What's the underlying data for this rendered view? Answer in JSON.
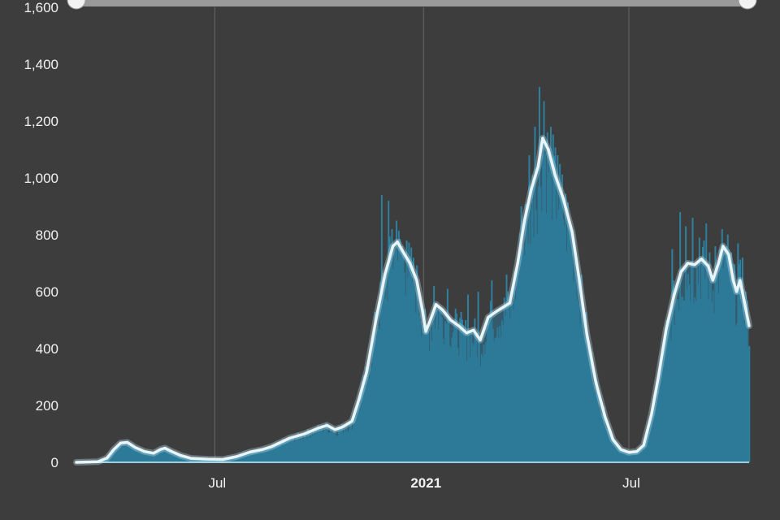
{
  "chart_data": {
    "type": "bar",
    "subtype": "daily bars with 7-day average line",
    "title": "",
    "xlabel": "",
    "ylabel": "",
    "ylim": [
      0,
      1600
    ],
    "y_ticks": [
      "0",
      "200",
      "400",
      "600",
      "800",
      "1,000",
      "1,200",
      "1,400",
      "1,600"
    ],
    "y_tick_values": [
      0,
      200,
      400,
      600,
      800,
      1000,
      1200,
      1400,
      1600
    ],
    "x_range": [
      "2020-03-01",
      "2021-10-15"
    ],
    "x_ticks": [
      {
        "label": "Jul",
        "date": "2020-07-01",
        "bold": false
      },
      {
        "label": "2021",
        "date": "2021-01-01",
        "bold": true
      },
      {
        "label": "Jul",
        "date": "2021-07-01",
        "bold": false
      }
    ],
    "grid": {
      "vertical": true,
      "horizontal": false
    },
    "colors": {
      "background": "#3d3d3d",
      "bars": "#2f7f9e",
      "area": "#2c7593",
      "line": "#e8f6fa",
      "grid": "#666666",
      "scrollbar": "#9a9a9a",
      "baseline": "#9ccfe0"
    },
    "series": [
      {
        "kind": "moving-average",
        "points": [
          [
            "2020-03-01",
            0
          ],
          [
            "2020-03-20",
            2
          ],
          [
            "2020-03-28",
            15
          ],
          [
            "2020-04-03",
            45
          ],
          [
            "2020-04-09",
            68
          ],
          [
            "2020-04-15",
            70
          ],
          [
            "2020-04-22",
            52
          ],
          [
            "2020-04-30",
            38
          ],
          [
            "2020-05-08",
            32
          ],
          [
            "2020-05-14",
            45
          ],
          [
            "2020-05-18",
            50
          ],
          [
            "2020-05-24",
            38
          ],
          [
            "2020-06-01",
            24
          ],
          [
            "2020-06-10",
            14
          ],
          [
            "2020-06-25",
            11
          ],
          [
            "2020-07-08",
            10
          ],
          [
            "2020-07-20",
            20
          ],
          [
            "2020-08-01",
            36
          ],
          [
            "2020-08-12",
            45
          ],
          [
            "2020-08-20",
            55
          ],
          [
            "2020-08-28",
            70
          ],
          [
            "2020-09-05",
            85
          ],
          [
            "2020-09-18",
            100
          ],
          [
            "2020-09-30",
            120
          ],
          [
            "2020-10-08",
            130
          ],
          [
            "2020-10-15",
            115
          ],
          [
            "2020-10-22",
            125
          ],
          [
            "2020-10-30",
            145
          ],
          [
            "2020-11-05",
            220
          ],
          [
            "2020-11-12",
            320
          ],
          [
            "2020-11-20",
            500
          ],
          [
            "2020-11-28",
            660
          ],
          [
            "2020-12-05",
            760
          ],
          [
            "2020-12-09",
            775
          ],
          [
            "2020-12-14",
            740
          ],
          [
            "2020-12-20",
            700
          ],
          [
            "2020-12-26",
            640
          ],
          [
            "2020-12-31",
            535
          ],
          [
            "2021-01-03",
            460
          ],
          [
            "2021-01-07",
            500
          ],
          [
            "2021-01-12",
            555
          ],
          [
            "2021-01-18",
            535
          ],
          [
            "2021-01-25",
            500
          ],
          [
            "2021-02-01",
            480
          ],
          [
            "2021-02-08",
            455
          ],
          [
            "2021-02-14",
            465
          ],
          [
            "2021-02-20",
            430
          ],
          [
            "2021-02-27",
            510
          ],
          [
            "2021-03-06",
            530
          ],
          [
            "2021-03-12",
            545
          ],
          [
            "2021-03-18",
            560
          ],
          [
            "2021-03-25",
            700
          ],
          [
            "2021-03-31",
            850
          ],
          [
            "2021-04-06",
            960
          ],
          [
            "2021-04-12",
            1040
          ],
          [
            "2021-04-16",
            1140
          ],
          [
            "2021-04-21",
            1100
          ],
          [
            "2021-04-27",
            1010
          ],
          [
            "2021-05-04",
            930
          ],
          [
            "2021-05-12",
            810
          ],
          [
            "2021-05-18",
            650
          ],
          [
            "2021-05-25",
            450
          ],
          [
            "2021-06-02",
            280
          ],
          [
            "2021-06-10",
            160
          ],
          [
            "2021-06-17",
            80
          ],
          [
            "2021-06-24",
            45
          ],
          [
            "2021-07-01",
            35
          ],
          [
            "2021-07-08",
            38
          ],
          [
            "2021-07-14",
            60
          ],
          [
            "2021-07-21",
            170
          ],
          [
            "2021-07-27",
            300
          ],
          [
            "2021-08-03",
            470
          ],
          [
            "2021-08-10",
            590
          ],
          [
            "2021-08-16",
            670
          ],
          [
            "2021-08-22",
            700
          ],
          [
            "2021-08-28",
            695
          ],
          [
            "2021-09-03",
            715
          ],
          [
            "2021-09-09",
            690
          ],
          [
            "2021-09-13",
            640
          ],
          [
            "2021-09-18",
            700
          ],
          [
            "2021-09-22",
            760
          ],
          [
            "2021-09-27",
            730
          ],
          [
            "2021-10-01",
            640
          ],
          [
            "2021-10-04",
            600
          ],
          [
            "2021-10-07",
            640
          ],
          [
            "2021-10-10",
            580
          ],
          [
            "2021-10-13",
            520
          ],
          [
            "2021-10-15",
            480
          ]
        ]
      },
      {
        "kind": "daily-bars",
        "points": [
          [
            "2020-11-25",
            940
          ],
          [
            "2020-12-01",
            920
          ],
          [
            "2020-12-04",
            820
          ],
          [
            "2020-12-08",
            850
          ],
          [
            "2020-12-13",
            760
          ],
          [
            "2020-12-17",
            780
          ],
          [
            "2021-01-10",
            620
          ],
          [
            "2021-01-22",
            610
          ],
          [
            "2021-02-09",
            590
          ],
          [
            "2021-02-18",
            600
          ],
          [
            "2021-03-02",
            640
          ],
          [
            "2021-03-15",
            660
          ],
          [
            "2021-03-28",
            900
          ],
          [
            "2021-04-04",
            1080
          ],
          [
            "2021-04-09",
            1180
          ],
          [
            "2021-04-13",
            1320
          ],
          [
            "2021-04-17",
            1270
          ],
          [
            "2021-04-23",
            1180
          ],
          [
            "2021-04-29",
            1080
          ],
          [
            "2021-08-08",
            750
          ],
          [
            "2021-08-15",
            880
          ],
          [
            "2021-08-20",
            830
          ],
          [
            "2021-08-26",
            860
          ],
          [
            "2021-09-01",
            790
          ],
          [
            "2021-09-07",
            840
          ],
          [
            "2021-09-15",
            760
          ],
          [
            "2021-09-21",
            820
          ],
          [
            "2021-09-25",
            760
          ],
          [
            "2021-09-30",
            700
          ],
          [
            "2021-10-05",
            770
          ],
          [
            "2021-10-09",
            720
          ],
          [
            "2021-10-12",
            600
          ]
        ]
      }
    ]
  }
}
